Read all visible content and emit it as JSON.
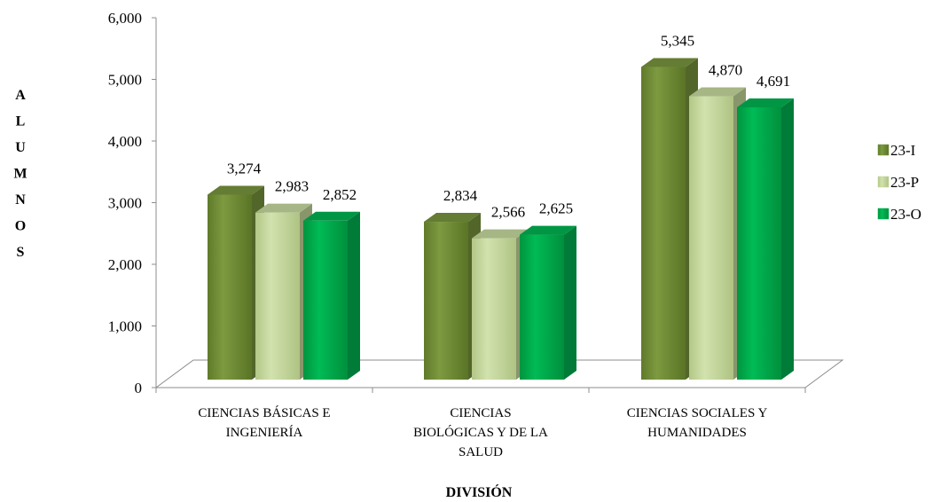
{
  "chart_data": {
    "type": "bar",
    "categories": [
      [
        "CIENCIAS BÁSICAS E",
        "INGENIERÍA"
      ],
      [
        "CIENCIAS",
        "BIOLÓGICAS Y DE LA",
        "SALUD"
      ],
      [
        "CIENCIAS SOCIALES Y",
        "HUMANIDADES"
      ]
    ],
    "series": [
      {
        "name": "23-I",
        "values": [
          3274,
          2834,
          5345
        ],
        "labels": [
          "3,274",
          "2,834",
          "5,345"
        ]
      },
      {
        "name": "23-P",
        "values": [
          2983,
          2566,
          4870
        ],
        "labels": [
          "2,983",
          "2,566",
          "4,870"
        ]
      },
      {
        "name": "23-O",
        "values": [
          2852,
          2625,
          4691
        ],
        "labels": [
          "2,852",
          "2,625",
          "4,691"
        ]
      }
    ],
    "yticks": [
      {
        "value": 0,
        "label": "0"
      },
      {
        "value": 1000,
        "label": "1,000"
      },
      {
        "value": 2000,
        "label": "2,000"
      },
      {
        "value": 3000,
        "label": "3,000"
      },
      {
        "value": 4000,
        "label": "4,000"
      },
      {
        "value": 5000,
        "label": "5,000"
      },
      {
        "value": 6000,
        "label": "6,000"
      }
    ],
    "ylim": [
      0,
      6000
    ],
    "ylabel": "ALUMNOS",
    "xlabel": "DIVISIÓN",
    "legend_position": "right",
    "grid": false,
    "colors": {
      "23-I": "#76923c",
      "23-P": "#c3d69b",
      "23-O": "#00b050"
    }
  }
}
